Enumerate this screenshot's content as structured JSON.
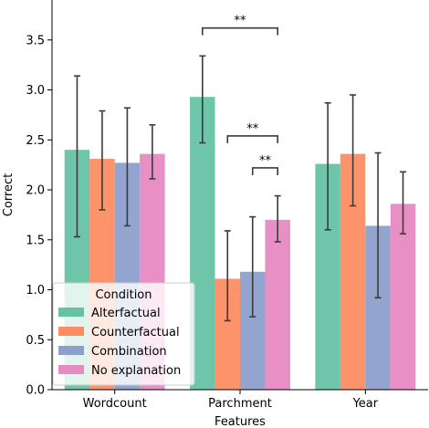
{
  "chart_data": {
    "type": "bar",
    "title": "",
    "xlabel": "Features",
    "ylabel": "Correct",
    "categories": [
      "Wordcount",
      "Parchment",
      "Year"
    ],
    "ylim": [
      0,
      3.9
    ],
    "yticks": [
      0.0,
      0.5,
      1.0,
      1.5,
      2.0,
      2.5,
      3.0,
      3.5
    ],
    "ytick_labels": [
      "0.0",
      "0.5",
      "1.0",
      "1.5",
      "2.0",
      "2.5",
      "3.0",
      "3.5"
    ],
    "grid": false,
    "legend": {
      "title": "Condition",
      "position": "lower-left"
    },
    "series": [
      {
        "name": "Alterfactual",
        "color": "#66c2a5",
        "values": [
          2.4,
          2.93,
          2.26
        ],
        "err_low": [
          1.53,
          2.47,
          1.6
        ],
        "err_high": [
          3.14,
          3.34,
          2.87
        ]
      },
      {
        "name": "Counterfactual",
        "color": "#fc8d62",
        "values": [
          2.31,
          1.11,
          2.36
        ],
        "err_low": [
          1.8,
          0.69,
          1.84
        ],
        "err_high": [
          2.79,
          1.59,
          2.95
        ]
      },
      {
        "name": "Combination",
        "color": "#8da0cb",
        "values": [
          2.27,
          1.18,
          1.64
        ],
        "err_low": [
          1.64,
          0.73,
          0.92
        ],
        "err_high": [
          2.82,
          1.73,
          2.37
        ]
      },
      {
        "name": "No explanation",
        "color": "#e78ac3",
        "values": [
          2.36,
          1.7,
          1.86
        ],
        "err_low": [
          2.11,
          1.48,
          1.56
        ],
        "err_high": [
          2.65,
          1.94,
          2.18
        ]
      }
    ],
    "annotations": [
      {
        "text": "**",
        "category": "Parchment",
        "from_series": 0,
        "to_series": 3,
        "y": 3.62
      },
      {
        "text": "**",
        "category": "Parchment",
        "from_series": 1,
        "to_series": 3,
        "y": 2.54
      },
      {
        "text": "**",
        "category": "Parchment",
        "from_series": 2,
        "to_series": 3,
        "y": 2.22
      }
    ]
  }
}
